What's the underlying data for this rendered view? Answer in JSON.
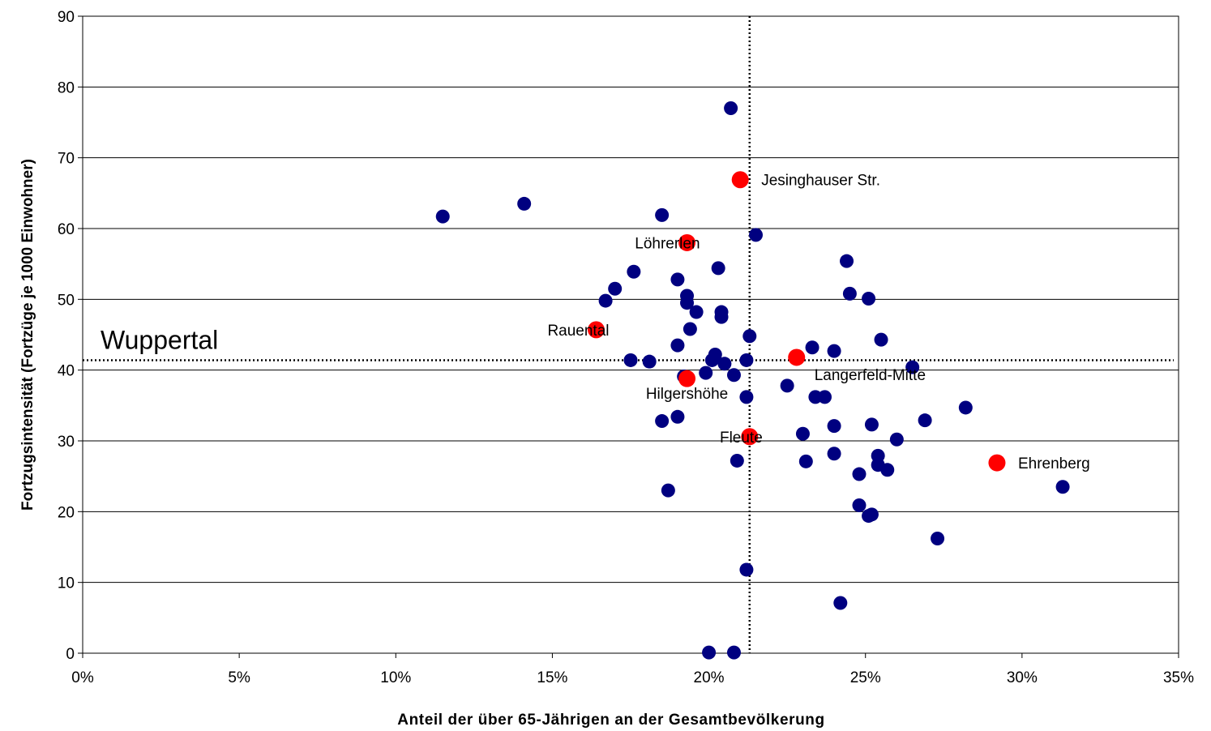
{
  "chart_data": {
    "type": "scatter",
    "title": "",
    "xlabel": "Anteil der über 65-Jährigen an der Gesamtbevölkerung",
    "ylabel": "Fortzugsintensität (Fortzüge je 1000 Einwohner)",
    "xlim": [
      0,
      35
    ],
    "ylim": [
      0,
      90
    ],
    "x_ticks": [
      "0%",
      "5%",
      "10%",
      "15%",
      "20%",
      "25%",
      "30%",
      "35%"
    ],
    "y_ticks": [
      "0",
      "10",
      "20",
      "30",
      "40",
      "50",
      "60",
      "70",
      "80",
      "90"
    ],
    "grid": "horizontal",
    "colors": {
      "default": "#000080",
      "highlight": "#ff0000",
      "grid": "#000000"
    },
    "reference_lines": {
      "horizontal": {
        "y": 41.4,
        "label": "Wuppertal",
        "style": "dotted"
      },
      "vertical": {
        "x": 21.3,
        "style": "dotted"
      }
    },
    "points": [
      {
        "x": 11.5,
        "y": 61.7
      },
      {
        "x": 14.1,
        "y": 63.5
      },
      {
        "x": 16.7,
        "y": 49.8
      },
      {
        "x": 17.0,
        "y": 51.5
      },
      {
        "x": 17.5,
        "y": 41.4
      },
      {
        "x": 17.6,
        "y": 53.9
      },
      {
        "x": 18.1,
        "y": 41.2
      },
      {
        "x": 18.5,
        "y": 61.9
      },
      {
        "x": 18.5,
        "y": 32.8
      },
      {
        "x": 18.7,
        "y": 23.0
      },
      {
        "x": 19.0,
        "y": 43.5
      },
      {
        "x": 19.0,
        "y": 33.4
      },
      {
        "x": 19.0,
        "y": 52.8
      },
      {
        "x": 19.2,
        "y": 39.1
      },
      {
        "x": 19.3,
        "y": 50.5
      },
      {
        "x": 19.3,
        "y": 49.5
      },
      {
        "x": 19.4,
        "y": 45.8
      },
      {
        "x": 19.6,
        "y": 48.2
      },
      {
        "x": 19.9,
        "y": 39.6
      },
      {
        "x": 20.0,
        "y": 0.1
      },
      {
        "x": 20.1,
        "y": 41.4
      },
      {
        "x": 20.2,
        "y": 42.2
      },
      {
        "x": 20.3,
        "y": 54.4
      },
      {
        "x": 20.4,
        "y": 47.5
      },
      {
        "x": 20.4,
        "y": 48.2
      },
      {
        "x": 20.5,
        "y": 40.9
      },
      {
        "x": 20.7,
        "y": 77.0
      },
      {
        "x": 20.8,
        "y": 39.3
      },
      {
        "x": 20.8,
        "y": 0.1
      },
      {
        "x": 20.9,
        "y": 27.2
      },
      {
        "x": 21.2,
        "y": 41.4
      },
      {
        "x": 21.2,
        "y": 36.2
      },
      {
        "x": 21.2,
        "y": 11.8
      },
      {
        "x": 21.3,
        "y": 44.8
      },
      {
        "x": 21.5,
        "y": 59.1
      },
      {
        "x": 22.5,
        "y": 37.8
      },
      {
        "x": 23.0,
        "y": 31.0
      },
      {
        "x": 23.1,
        "y": 27.1
      },
      {
        "x": 23.3,
        "y": 43.2
      },
      {
        "x": 23.4,
        "y": 36.2
      },
      {
        "x": 23.7,
        "y": 36.2
      },
      {
        "x": 24.0,
        "y": 42.7
      },
      {
        "x": 24.0,
        "y": 32.1
      },
      {
        "x": 24.0,
        "y": 28.2
      },
      {
        "x": 24.2,
        "y": 7.1
      },
      {
        "x": 24.4,
        "y": 55.4
      },
      {
        "x": 24.5,
        "y": 50.8
      },
      {
        "x": 24.8,
        "y": 25.3
      },
      {
        "x": 24.8,
        "y": 20.9
      },
      {
        "x": 25.1,
        "y": 19.4
      },
      {
        "x": 25.1,
        "y": 50.1
      },
      {
        "x": 25.2,
        "y": 19.6
      },
      {
        "x": 25.2,
        "y": 32.3
      },
      {
        "x": 25.4,
        "y": 27.9
      },
      {
        "x": 25.4,
        "y": 26.6
      },
      {
        "x": 25.5,
        "y": 44.3
      },
      {
        "x": 25.7,
        "y": 25.9
      },
      {
        "x": 26.0,
        "y": 30.2
      },
      {
        "x": 26.5,
        "y": 40.4
      },
      {
        "x": 26.9,
        "y": 32.9
      },
      {
        "x": 27.3,
        "y": 16.2
      },
      {
        "x": 28.2,
        "y": 34.7
      },
      {
        "x": 31.3,
        "y": 23.5
      }
    ],
    "highlighted": [
      {
        "x": 21.0,
        "y": 66.9,
        "label": "Jesinghauser Str.",
        "anchor": "right"
      },
      {
        "x": 19.3,
        "y": 58.0,
        "label": "Löhrerlen",
        "anchor": "left"
      },
      {
        "x": 16.4,
        "y": 45.7,
        "label": "Rauental",
        "anchor": "left"
      },
      {
        "x": 22.8,
        "y": 41.8,
        "label": "Langerfeld-Mitte",
        "anchor": "below-right"
      },
      {
        "x": 19.3,
        "y": 38.8,
        "label": "Hilgershöhe",
        "anchor": "below"
      },
      {
        "x": 21.3,
        "y": 30.6,
        "label": "Fleute",
        "anchor": "left"
      },
      {
        "x": 29.2,
        "y": 26.9,
        "label": "Ehrenberg",
        "anchor": "right"
      }
    ]
  }
}
